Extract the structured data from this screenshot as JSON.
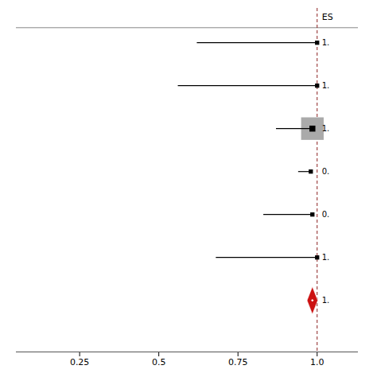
{
  "chart_data": {
    "type": "forest",
    "annotation": "ES",
    "xlim": [
      0.05,
      1.13
    ],
    "xticks": [
      0.25,
      0.5,
      0.75,
      {
        "value": 1.0,
        "label": "1.0"
      }
    ],
    "tick_labels": "x",
    "reference_line": {
      "value": 1.0,
      "color": "#8B2020"
    },
    "studies": [
      {
        "label": "1.",
        "estimate": 1.0,
        "ci_lower": 0.62,
        "size": 5
      },
      {
        "label": "1.",
        "estimate": 1.0,
        "ci_lower": 0.56,
        "size": 5
      },
      {
        "label": "1.",
        "estimate": 0.985,
        "ci_lower": 0.87,
        "size": 10,
        "box_color": "#aaaaaa"
      },
      {
        "label": "0.",
        "estimate": 0.98,
        "ci_lower": 0.94,
        "size": 5
      },
      {
        "label": "0.",
        "estimate": 0.985,
        "ci_lower": 0.83,
        "size": 5
      },
      {
        "label": "1.",
        "estimate": 1.0,
        "ci_lower": 0.68,
        "size": 5
      }
    ],
    "diamond": {
      "label": "1.",
      "estimate": 0.985,
      "ci_lower": 0.968,
      "ci_upper": 1.002,
      "color": "#cc1111"
    }
  }
}
